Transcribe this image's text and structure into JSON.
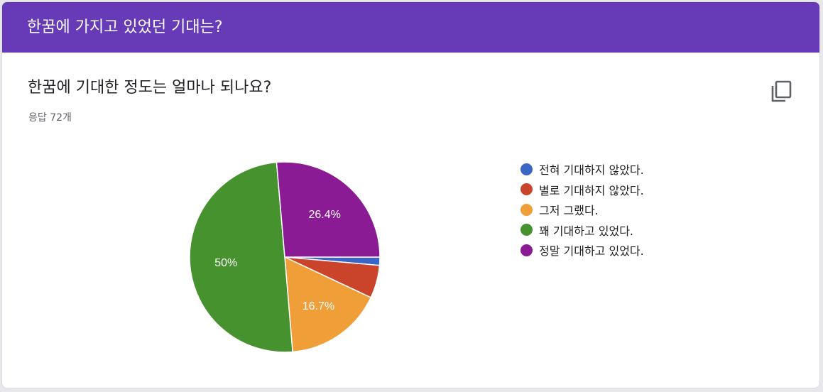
{
  "header": {
    "title": "한꿈에 가지고 있었던 기대는?"
  },
  "question": {
    "title": "한꿈에 기대한 정도는 얼마나 되나요?",
    "responses": "응답 72개"
  },
  "icons": {
    "copy": "copy-icon"
  },
  "colors": {
    "header_bg": "#673ab7"
  },
  "chart_data": {
    "type": "pie",
    "start_angle_deg": 0,
    "direction": "clockwise",
    "slices": [
      {
        "label": "전혀 기대하지 않았다.",
        "percent": 1.4,
        "color": "#3b66c5",
        "display_label": ""
      },
      {
        "label": "별로 기대하지 않았다.",
        "percent": 5.6,
        "color": "#c9442a",
        "display_label": ""
      },
      {
        "label": "그저 그랬다.",
        "percent": 16.7,
        "color": "#f09e38",
        "display_label": "16.7%"
      },
      {
        "label": "꽤 기대하고 있었다.",
        "percent": 50,
        "color": "#45922f",
        "display_label": "50%"
      },
      {
        "label": "정말 기대하고 있었다.",
        "percent": 26.4,
        "color": "#8a1b94",
        "display_label": "26.4%"
      }
    ],
    "legend_position": "right"
  }
}
